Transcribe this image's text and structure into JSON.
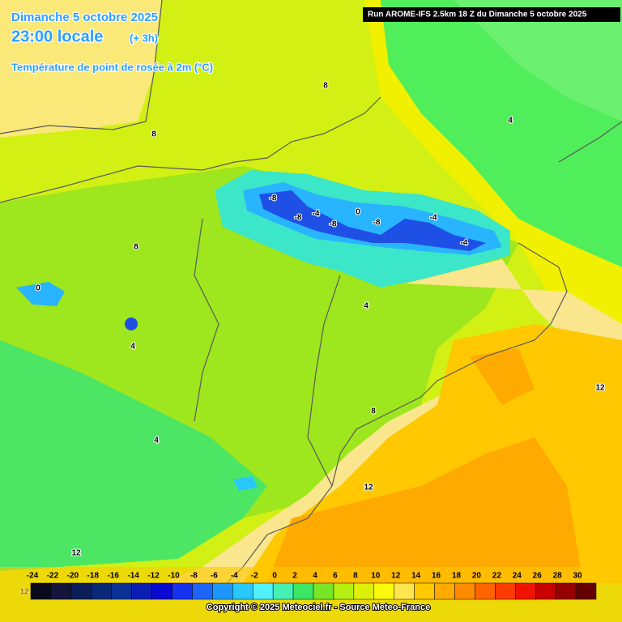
{
  "header": {
    "date": "Dimanche 5 octobre 2025",
    "time": "23:00 locale",
    "offset": "(+ 3h)",
    "parameter": "Température de point de rosée à 2m (°C)",
    "run": "Run AROME-IFS 2.5km 18 Z du Dimanche 5 octobre 2025"
  },
  "contour_labels": [
    8,
    8,
    8,
    4,
    4,
    4,
    4,
    -8,
    -8,
    -8,
    -8,
    -4,
    -4,
    -4,
    0,
    0,
    8,
    12,
    12,
    12,
    12
  ],
  "legend": {
    "ticks": [
      -24,
      -22,
      -20,
      -18,
      -16,
      -14,
      -12,
      -10,
      -8,
      -6,
      -4,
      -2,
      0,
      2,
      4,
      6,
      8,
      10,
      12,
      14,
      16,
      18,
      20,
      22,
      24,
      26,
      28,
      30
    ],
    "colors": [
      "#0a0a1e",
      "#14143c",
      "#0a1e5a",
      "#0a2878",
      "#0a3296",
      "#0a1eb4",
      "#0a0ad2",
      "#1432f0",
      "#1e64ff",
      "#1e96ff",
      "#28c8ff",
      "#50f0ff",
      "#46f0b4",
      "#3ce664",
      "#78e628",
      "#b4f014",
      "#dcf00a",
      "#fafa0a",
      "#ffe650",
      "#ffc800",
      "#ffaa00",
      "#ff8c00",
      "#ff6400",
      "#ff3c00",
      "#f01400",
      "#c80000",
      "#960000",
      "#640000"
    ]
  },
  "footer": {
    "copyright": "Copyright © 2025 Meteociel.fr - Source Meteo-France"
  }
}
